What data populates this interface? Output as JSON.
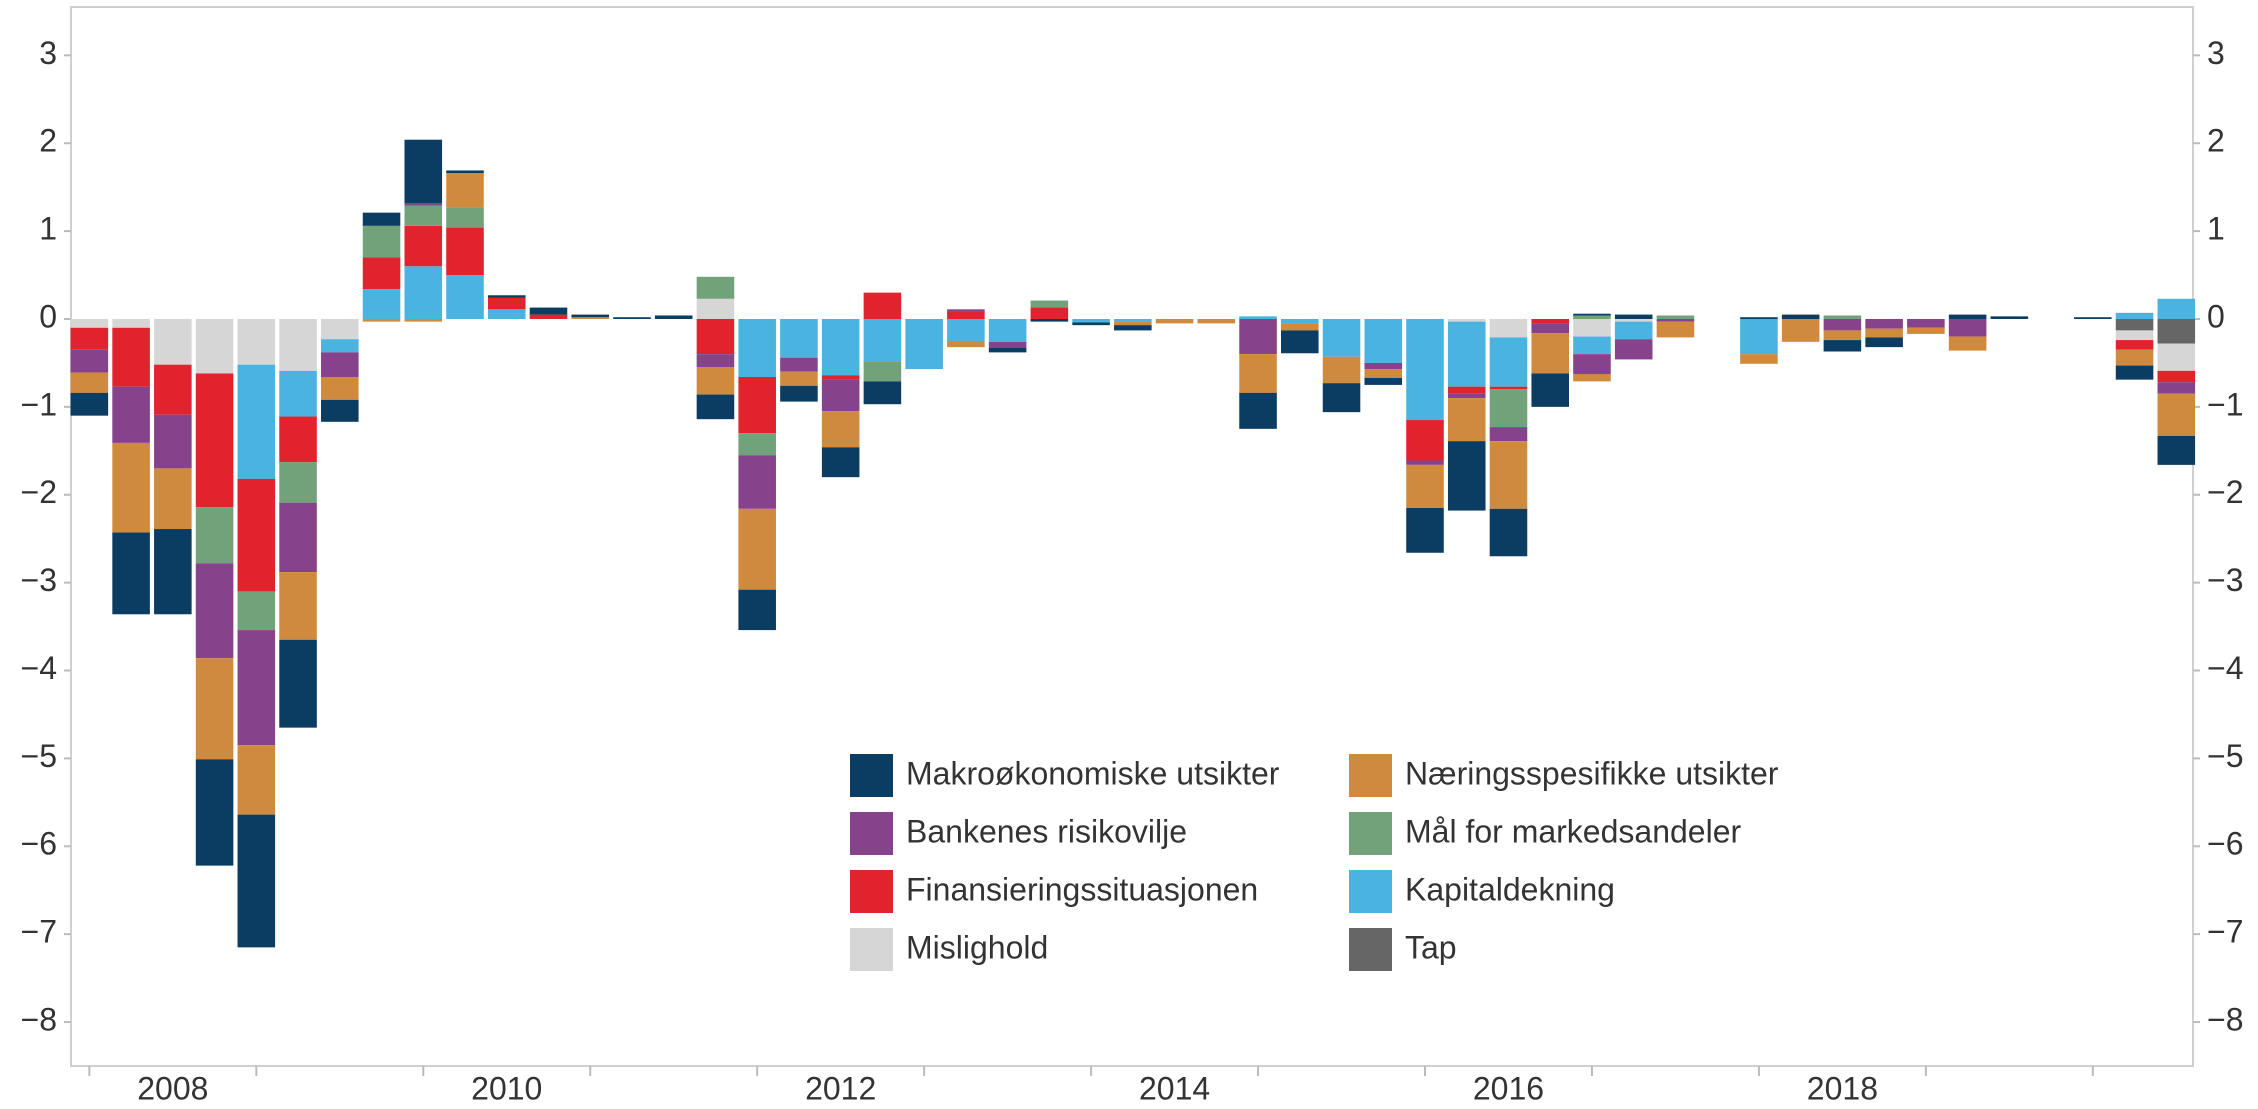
{
  "chart_data": {
    "type": "stacked_bar",
    "x": [
      2008,
      2008.25,
      2008.5,
      2008.75,
      2009,
      2009.25,
      2009.5,
      2009.75,
      2010,
      2010.25,
      2010.5,
      2010.75,
      2011,
      2011.25,
      2011.5,
      2011.75,
      2012,
      2012.25,
      2012.5,
      2012.75,
      2013,
      2013.25,
      2013.5,
      2013.75,
      2014,
      2014.25,
      2014.5,
      2014.75,
      2015,
      2015.25,
      2015.5,
      2015.75,
      2016,
      2016.25,
      2016.5,
      2016.75,
      2017,
      2017.25,
      2017.5,
      2017.75,
      2018,
      2018.25,
      2018.5,
      2018.75,
      2019,
      2019.25,
      2019.5,
      2019.75,
      2020,
      2020.25,
      2020.5
    ],
    "series": [
      {
        "name": "Makroøkonomiske utsikter",
        "color": "#0b3d63",
        "values": [
          -0.26,
          -0.93,
          -0.97,
          -1.21,
          -1.51,
          -1.0,
          -0.25,
          0.15,
          0.72,
          0.03,
          0.03,
          0.08,
          0.03,
          0.02,
          0.04,
          -0.28,
          -0.46,
          -0.18,
          -0.34,
          -0.26,
          0,
          0,
          -0.05,
          -0.03,
          -0.03,
          -0.06,
          0,
          0,
          -0.41,
          -0.26,
          -0.33,
          -0.08,
          -0.51,
          -0.79,
          -0.54,
          -0.38,
          0.02,
          0.05,
          0,
          0,
          0.02,
          0.05,
          -0.13,
          -0.11,
          0,
          0.05,
          0.03,
          0,
          0.02,
          -0.16,
          -0.33
        ]
      },
      {
        "name": "Næringsspesifikke utsikter",
        "color": "#d08a3e",
        "values": [
          -0.23,
          -1.02,
          -0.69,
          -1.15,
          -0.79,
          -0.77,
          -0.26,
          -0.03,
          -0.03,
          0.39,
          0,
          0,
          0.02,
          0,
          0,
          -0.31,
          -0.92,
          -0.16,
          -0.41,
          0,
          0,
          -0.07,
          0,
          0,
          0,
          -0.04,
          -0.05,
          -0.05,
          -0.44,
          -0.08,
          -0.3,
          -0.1,
          -0.49,
          -0.49,
          -0.77,
          -0.46,
          -0.08,
          0,
          -0.18,
          0,
          -0.11,
          -0.26,
          -0.11,
          -0.1,
          -0.07,
          -0.16,
          0,
          0,
          0,
          -0.18,
          -0.48
        ]
      },
      {
        "name": "Bankenes risikovilje",
        "color": "#86428a",
        "values": [
          -0.26,
          -0.64,
          -0.61,
          -1.08,
          -1.31,
          -0.79,
          -0.28,
          0,
          0.03,
          0,
          0,
          0,
          0,
          0,
          0,
          -0.15,
          -0.61,
          -0.16,
          -0.36,
          0,
          0,
          0.03,
          -0.07,
          0,
          0,
          0,
          0,
          0,
          -0.4,
          0,
          0,
          -0.07,
          -0.05,
          -0.05,
          -0.16,
          -0.11,
          -0.23,
          -0.23,
          -0.03,
          0,
          0,
          0,
          -0.13,
          -0.11,
          -0.1,
          -0.2,
          0,
          0,
          0,
          0,
          -0.13
        ]
      },
      {
        "name": "Mål for markedsandeler",
        "color": "#72a27a",
        "values": [
          0,
          0,
          0,
          -0.64,
          -0.44,
          -0.46,
          0,
          0.36,
          0.23,
          0.23,
          0,
          0,
          0,
          0,
          0,
          0.25,
          -0.25,
          0,
          0,
          -0.23,
          0,
          0,
          0,
          0.08,
          0,
          0,
          0,
          0,
          0,
          0,
          0,
          0,
          0,
          0,
          -0.43,
          0,
          0.04,
          0,
          0.04,
          0,
          0,
          0,
          0.04,
          0,
          0,
          0,
          0,
          0,
          0,
          0,
          0
        ]
      },
      {
        "name": "Finansieringssituasjonen",
        "color": "#e0232d",
        "values": [
          -0.25,
          -0.67,
          -0.57,
          -1.52,
          -1.28,
          -0.52,
          0,
          0.36,
          0.46,
          0.54,
          0.13,
          0.05,
          0,
          0,
          0,
          -0.4,
          -0.64,
          0,
          -0.05,
          0.3,
          0,
          0.08,
          0,
          0.13,
          0,
          0,
          0,
          0,
          0,
          0,
          0,
          0,
          -0.46,
          -0.08,
          -0.03,
          -0.05,
          0,
          0,
          0,
          0,
          0,
          0,
          0,
          0,
          0,
          0,
          0,
          0,
          0,
          -0.11,
          -0.13
        ]
      },
      {
        "name": "Kapitaldekning",
        "color": "#4bb3e0",
        "values": [
          0,
          0,
          0,
          0,
          -1.3,
          -0.52,
          -0.15,
          0.34,
          0.6,
          0.5,
          0.11,
          0,
          0,
          0,
          0,
          0,
          -0.66,
          -0.44,
          -0.64,
          -0.48,
          -0.57,
          -0.25,
          -0.26,
          0,
          -0.04,
          -0.03,
          0,
          0,
          0.03,
          -0.05,
          -0.43,
          -0.5,
          -1.15,
          -0.74,
          -0.56,
          0,
          -0.2,
          -0.2,
          0,
          0,
          -0.4,
          0,
          0,
          0,
          0,
          0,
          0,
          0,
          0,
          0.07,
          0.23
        ]
      },
      {
        "name": "Mislighold",
        "color": "#d6d6d6",
        "values": [
          -0.1,
          -0.1,
          -0.52,
          -0.62,
          -0.52,
          -0.59,
          -0.23,
          0,
          0,
          0,
          0,
          0,
          0,
          0,
          0,
          0.23,
          0,
          0,
          0,
          0,
          0,
          0,
          0,
          0,
          0,
          0,
          0,
          0,
          0,
          0,
          0,
          0,
          0,
          -0.03,
          -0.21,
          0,
          -0.2,
          -0.03,
          0,
          0,
          0,
          0,
          0,
          0,
          0,
          0,
          0,
          0,
          0,
          -0.11,
          -0.31
        ]
      },
      {
        "name": "Tap",
        "color": "#666666",
        "values": [
          0,
          0,
          0,
          0,
          0,
          0,
          0,
          0,
          0,
          0,
          0,
          0,
          0,
          0,
          0,
          0,
          0,
          0,
          0,
          0,
          0,
          0,
          0,
          0,
          0,
          0,
          0,
          0,
          0,
          0,
          0,
          0,
          0,
          0,
          0,
          0,
          0,
          0,
          0,
          0,
          0,
          0,
          0,
          0,
          0,
          0,
          0,
          0,
          0,
          -0.13,
          -0.28
        ]
      }
    ],
    "xlim": [
      2007.89,
      2020.6
    ],
    "xticks": [
      {
        "value": 2008.5,
        "label": "2008"
      },
      {
        "value": 2010.5,
        "label": "2010"
      },
      {
        "value": 2012.5,
        "label": "2012"
      },
      {
        "value": 2014.5,
        "label": "2014"
      },
      {
        "value": 2016.5,
        "label": "2016"
      },
      {
        "value": 2018.5,
        "label": "2018"
      }
    ],
    "xminorticks": [
      2008,
      2009,
      2010,
      2011,
      2012,
      2013,
      2014,
      2015,
      2016,
      2017,
      2018,
      2019,
      2020
    ],
    "ylim": [
      -8.5,
      3.55
    ],
    "yticks": [
      3,
      2,
      1,
      0,
      {
        "value": -1,
        "label": "−1"
      },
      {
        "value": -2,
        "label": "−2"
      },
      {
        "value": -3,
        "label": "−3"
      },
      {
        "value": -4,
        "label": "−4"
      },
      {
        "value": -5,
        "label": "−5"
      },
      {
        "value": -6,
        "label": "−6"
      },
      {
        "value": -7,
        "label": "−7"
      },
      {
        "value": -8,
        "label": "−8"
      }
    ],
    "grid": false,
    "legend_position": "bottom-center"
  }
}
